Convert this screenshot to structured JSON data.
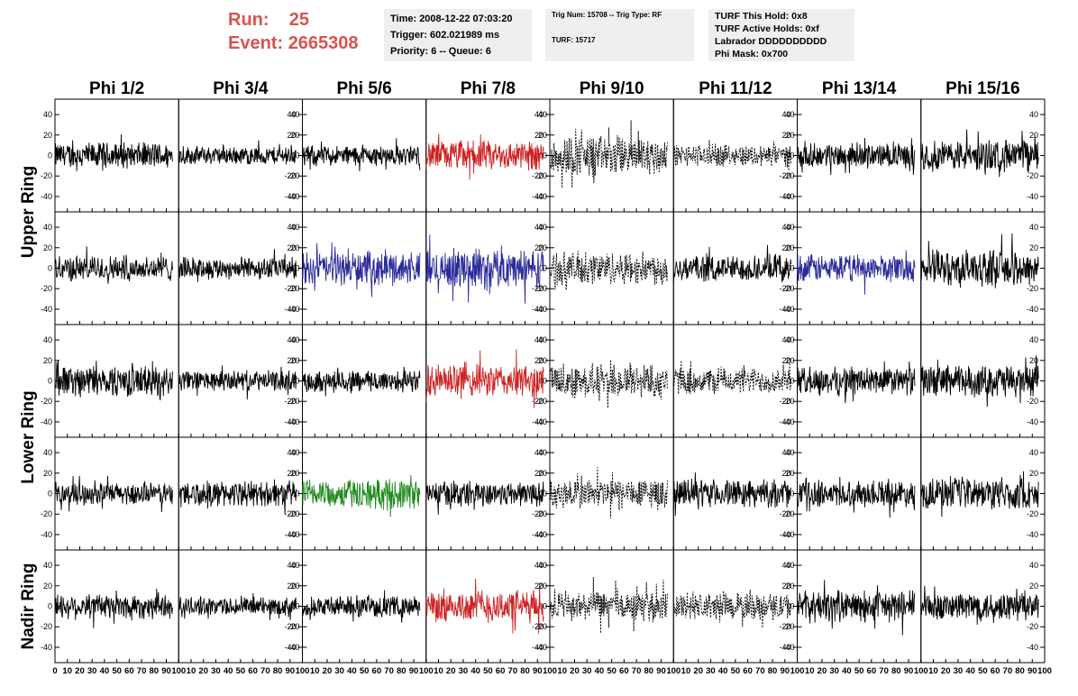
{
  "header": {
    "run_label": "Run:",
    "run_value": "25",
    "event_label": "Event:",
    "event_value": "2665308",
    "time_info": [
      "Time: 2008-12-22 07:03:20",
      "Trigger: 602.021989 ms",
      "Priority: 6 -- Queue: 6"
    ],
    "trig_info": [
      "Trig Num: 15708 -- Trig Type: RF",
      "TURF: 15717"
    ],
    "turf_info": [
      "TURF This Hold: 0x8",
      "TURF Active Holds: 0xf",
      "Labrador DDDDDDDDDD",
      "Phi Mask: 0x700"
    ]
  },
  "chart_data": {
    "type": "line",
    "columns": [
      "Phi 1/2",
      "Phi 3/4",
      "Phi 5/6",
      "Phi 7/8",
      "Phi 9/10",
      "Phi 11/12",
      "Phi 13/14",
      "Phi 15/16"
    ],
    "rows": [
      "Upper Ring",
      "Upper Ring",
      "Lower Ring",
      "Lower Ring",
      "Nadir Ring"
    ],
    "row_labels": [
      "Upper Ring",
      "Lower Ring",
      "Nadir Ring"
    ],
    "xlim": [
      0,
      100
    ],
    "ylim": [
      -55,
      55
    ],
    "y_ticks": [
      -40,
      -20,
      0,
      20,
      40
    ],
    "x_ticks": [
      0,
      10,
      20,
      30,
      40,
      50,
      60,
      70,
      80,
      90,
      100
    ],
    "samples": 260,
    "colors": {
      "black": "#000000",
      "red": "#cc2222",
      "blue": "#2a2a9a",
      "green": "#1e8a1e"
    },
    "traces": [
      [
        {
          "style": "black",
          "amp": 14,
          "xmax": 95
        },
        {
          "style": "black",
          "amp": 10,
          "xmax": 95
        },
        {
          "style": "black",
          "amp": 11,
          "xmax": 95
        },
        {
          "style": "red",
          "amp": 16,
          "xmax": 95
        },
        {
          "style": "dashed",
          "amp": 22,
          "xmax": 95
        },
        {
          "style": "dashed",
          "amp": 12,
          "xmax": 95
        },
        {
          "style": "black",
          "amp": 13,
          "xmax": 95
        },
        {
          "style": "black",
          "amp": 17,
          "xmax": 95
        }
      ],
      [
        {
          "style": "black",
          "amp": 14,
          "xmax": 95
        },
        {
          "style": "black",
          "amp": 12,
          "xmax": 95
        },
        {
          "style": "blue",
          "amp": 18,
          "xmax": 95
        },
        {
          "style": "blue",
          "amp": 21,
          "xmax": 95
        },
        {
          "style": "dashed",
          "amp": 18,
          "xmax": 95
        },
        {
          "style": "black",
          "amp": 14,
          "xmax": 95
        },
        {
          "style": "blue",
          "amp": 15,
          "xmax": 95
        },
        {
          "style": "black",
          "amp": 20,
          "xmax": 95
        }
      ],
      [
        {
          "style": "black",
          "amp": 17,
          "xmax": 95
        },
        {
          "style": "black",
          "amp": 11,
          "xmax": 95
        },
        {
          "style": "black",
          "amp": 12,
          "xmax": 95
        },
        {
          "style": "red",
          "amp": 18,
          "xmax": 95
        },
        {
          "style": "dashed",
          "amp": 19,
          "xmax": 95
        },
        {
          "style": "dashed",
          "amp": 14,
          "xmax": 95
        },
        {
          "style": "black",
          "amp": 15,
          "xmax": 95
        },
        {
          "style": "black",
          "amp": 17,
          "xmax": 95
        }
      ],
      [
        {
          "style": "black",
          "amp": 12,
          "xmax": 95
        },
        {
          "style": "black",
          "amp": 14,
          "xmax": 95
        },
        {
          "style": "green",
          "amp": 16,
          "xmax": 95
        },
        {
          "style": "black",
          "amp": 14,
          "xmax": 95
        },
        {
          "style": "dashed",
          "amp": 17,
          "xmax": 95
        },
        {
          "style": "black",
          "amp": 15,
          "xmax": 95
        },
        {
          "style": "black",
          "amp": 14,
          "xmax": 95
        },
        {
          "style": "black",
          "amp": 17,
          "xmax": 95
        }
      ],
      [
        {
          "style": "black",
          "amp": 14,
          "xmax": 95
        },
        {
          "style": "black",
          "amp": 10,
          "xmax": 95
        },
        {
          "style": "black",
          "amp": 11,
          "xmax": 95
        },
        {
          "style": "red",
          "amp": 18,
          "xmax": 95
        },
        {
          "style": "dashed",
          "amp": 16,
          "xmax": 95
        },
        {
          "style": "dashed",
          "amp": 15,
          "xmax": 95
        },
        {
          "style": "black",
          "amp": 17,
          "xmax": 95
        },
        {
          "style": "black",
          "amp": 16,
          "xmax": 95
        }
      ]
    ]
  }
}
